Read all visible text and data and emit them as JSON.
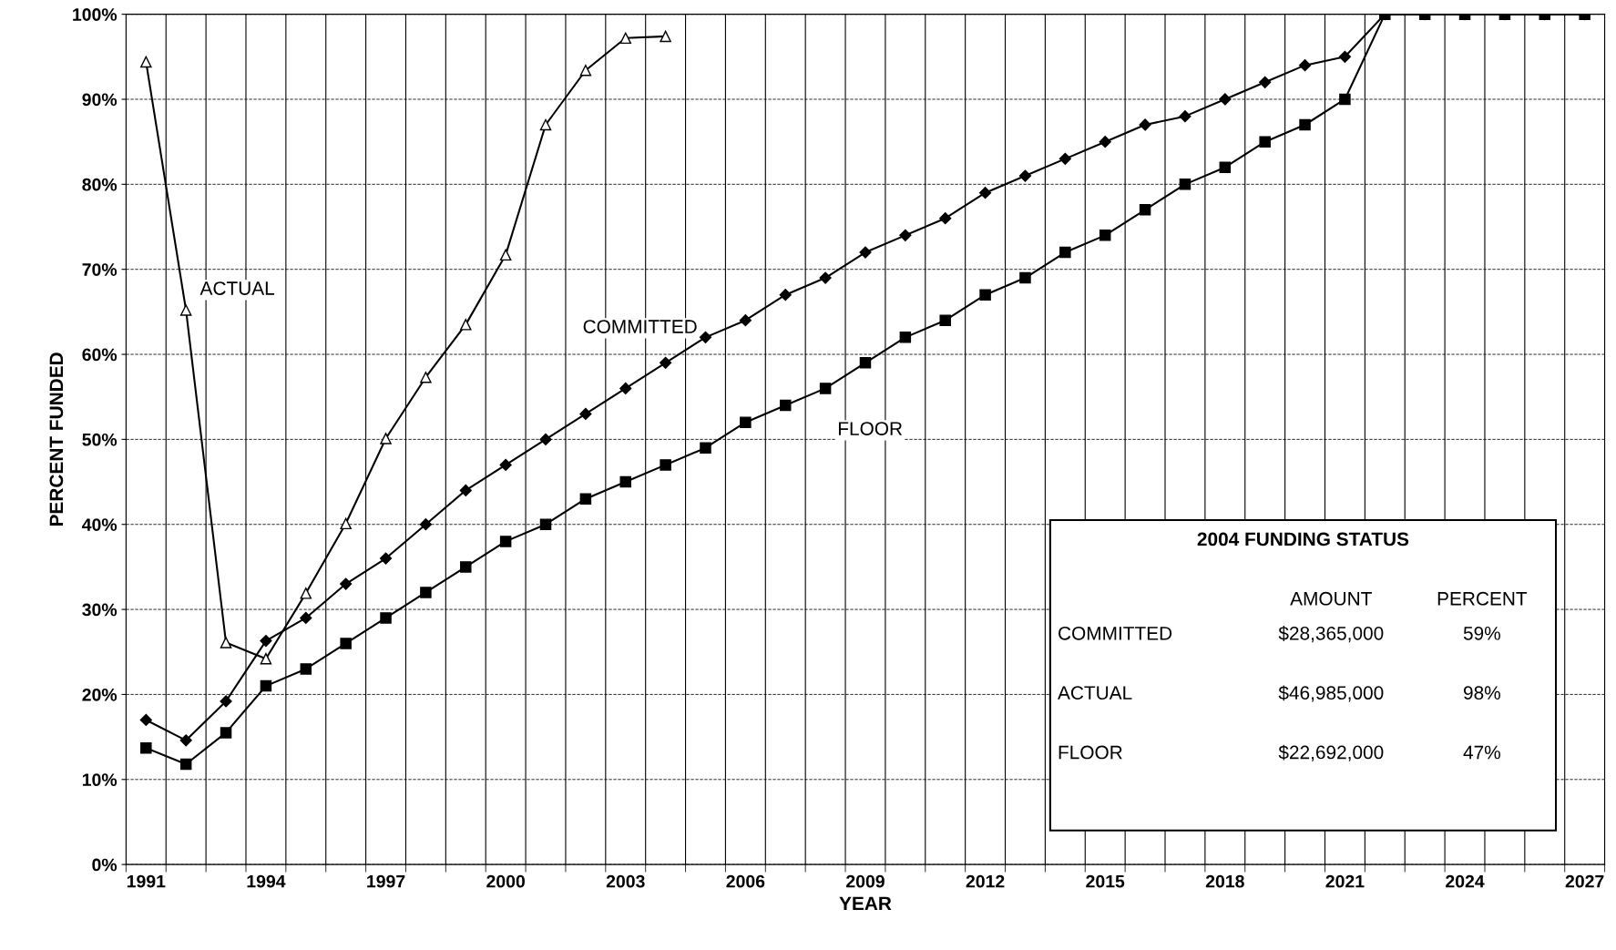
{
  "chart_data": {
    "type": "line",
    "xlabel": "YEAR",
    "ylabel": "PERCENT FUNDED",
    "categories": [
      "1991",
      null,
      null,
      "1994",
      null,
      null,
      "1997",
      null,
      null,
      "2000",
      null,
      null,
      "2003",
      null,
      null,
      "2006",
      null,
      null,
      "2009",
      null,
      null,
      "2012",
      null,
      null,
      "2015",
      null,
      null,
      "2018",
      null,
      null,
      "2021",
      null,
      null,
      "2024",
      null,
      null,
      "2027"
    ],
    "series": [
      {
        "name": "ACTUAL",
        "color": "#000000",
        "marker": "triangle",
        "values": [
          94.4,
          65.2,
          26.1,
          24.2,
          31.9,
          40.1,
          50.1,
          57.3,
          63.5,
          71.7,
          87,
          93.4,
          97.2,
          97.4,
          null,
          null,
          null,
          null,
          null,
          null,
          null,
          null,
          null,
          null,
          null,
          null,
          null,
          null,
          null,
          null,
          null,
          null,
          null,
          null,
          null,
          null,
          null
        ]
      },
      {
        "name": "COMMITTED",
        "color": "#000000",
        "marker": "diamond",
        "values": [
          17,
          14.6,
          19.2,
          26.3,
          29,
          33,
          36,
          40,
          44,
          47,
          50,
          53,
          56,
          59,
          62,
          64,
          67,
          69,
          72,
          74,
          76,
          79,
          81,
          83,
          85,
          87,
          88,
          90,
          92,
          94,
          95,
          100,
          100,
          100,
          100,
          100,
          100
        ]
      },
      {
        "name": "FLOOR",
        "color": "#000000",
        "marker": "square",
        "values": [
          13.7,
          11.8,
          15.5,
          21,
          23,
          26,
          29,
          32,
          35,
          38,
          40,
          43,
          45,
          47,
          49,
          52,
          54,
          56,
          59,
          62,
          64,
          67,
          69,
          72,
          74,
          77,
          80,
          82,
          85,
          87,
          90,
          100,
          100,
          100,
          100,
          100,
          100
        ]
      }
    ],
    "ylim": [
      0,
      100
    ],
    "yticks": [
      {
        "value": 0,
        "label": "0%"
      },
      {
        "value": 10,
        "label": "10%"
      },
      {
        "value": 20,
        "label": "20%"
      },
      {
        "value": 30,
        "label": "30%"
      },
      {
        "value": 40,
        "label": "40%"
      },
      {
        "value": 50,
        "label": "50%"
      },
      {
        "value": 60,
        "label": "60%"
      },
      {
        "value": 70,
        "label": "70%"
      },
      {
        "value": 80,
        "label": "80%"
      },
      {
        "value": 90,
        "label": "90%"
      },
      {
        "value": 100,
        "label": "100%"
      }
    ],
    "grid": true,
    "legend": false,
    "annotations": [
      "2004 FUNDING STATUS",
      "AMOUNT",
      "PERCENT",
      "COMMITTED",
      "$28,365,000",
      "59%",
      "ACTUAL",
      "$46,985,000",
      "98%",
      "FLOOR",
      "$22,692,000",
      "47%"
    ]
  }
}
